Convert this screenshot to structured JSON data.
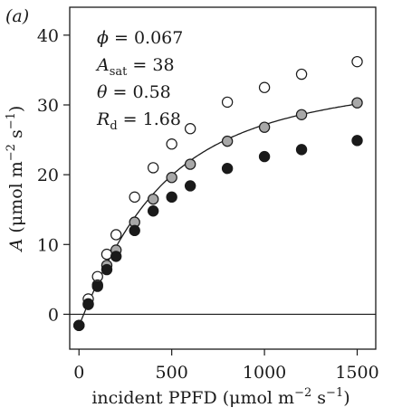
{
  "chart_data": {
    "type": "scatter",
    "panel_label": "(a)",
    "xlabel": {
      "prefix": "incident PPFD (μmol m",
      "exp1": "−2",
      "mid": " s",
      "exp2": "−1",
      "suffix": ")"
    },
    "ylabel": {
      "var": "A",
      "prefix": " (μmol m",
      "exp1": "−2",
      "mid": " s",
      "exp2": "−1",
      "suffix": ")"
    },
    "xlim": [
      -50,
      1600
    ],
    "ylim": [
      -5,
      44
    ],
    "xticks": [
      0,
      500,
      1000,
      1500
    ],
    "yticks": [
      0,
      10,
      20,
      30,
      40
    ],
    "grid": false,
    "zero_line": true,
    "parameters": [
      {
        "symbol": "ϕ",
        "sub": "",
        "eq": " = 0.067"
      },
      {
        "symbol": "A",
        "sub": "sat",
        "eq": " = 38"
      },
      {
        "symbol": "θ",
        "sub": "",
        "eq": " = 0.58"
      },
      {
        "symbol": "R",
        "sub": "d",
        "eq": " = 1.68"
      }
    ],
    "fit": {
      "phi": 0.067,
      "Asat": 38,
      "theta": 0.58,
      "Rd": 1.68
    },
    "series": [
      {
        "style": "open",
        "color": "#ffffff",
        "points": [
          [
            0,
            -1.6
          ],
          [
            50,
            2.2
          ],
          [
            100,
            5.4
          ],
          [
            150,
            8.6
          ],
          [
            200,
            11.4
          ],
          [
            300,
            16.8
          ],
          [
            400,
            21.0
          ],
          [
            500,
            24.4
          ],
          [
            600,
            26.6
          ],
          [
            800,
            30.4
          ],
          [
            1000,
            32.5
          ],
          [
            1200,
            34.4
          ],
          [
            1500,
            36.2
          ]
        ]
      },
      {
        "style": "gray",
        "color": "#a8a8a8",
        "points": [
          [
            0,
            -1.6
          ],
          [
            50,
            1.4
          ],
          [
            100,
            4.2
          ],
          [
            150,
            7.0
          ],
          [
            200,
            9.2
          ],
          [
            300,
            13.2
          ],
          [
            400,
            16.5
          ],
          [
            500,
            19.6
          ],
          [
            600,
            21.5
          ],
          [
            800,
            24.8
          ],
          [
            1000,
            26.8
          ],
          [
            1200,
            28.6
          ],
          [
            1500,
            30.3
          ]
        ]
      },
      {
        "style": "filled",
        "color": "#1a1a1a",
        "points": [
          [
            0,
            -1.6
          ],
          [
            50,
            1.5
          ],
          [
            100,
            4.0
          ],
          [
            150,
            6.4
          ],
          [
            200,
            8.3
          ],
          [
            300,
            12.0
          ],
          [
            400,
            14.8
          ],
          [
            500,
            16.8
          ],
          [
            600,
            18.4
          ],
          [
            800,
            20.9
          ],
          [
            1000,
            22.6
          ],
          [
            1200,
            23.6
          ],
          [
            1500,
            24.9
          ]
        ]
      }
    ]
  }
}
